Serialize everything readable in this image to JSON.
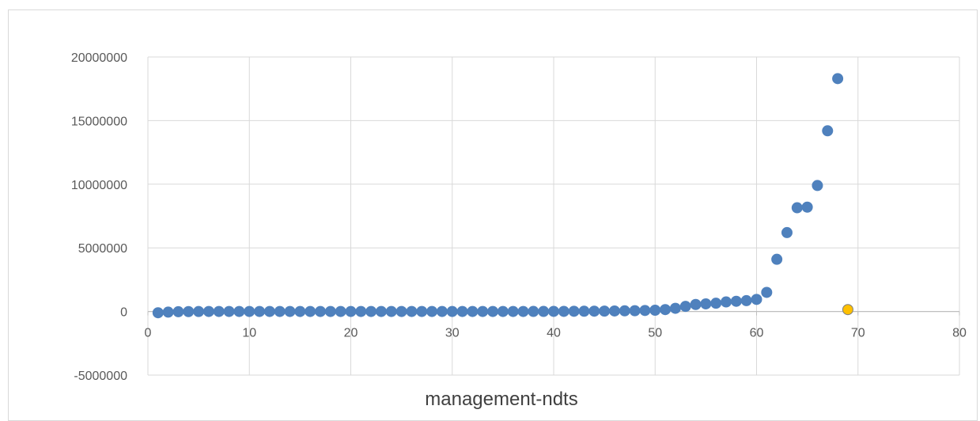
{
  "chart_data": {
    "type": "scatter",
    "title": "",
    "xlabel": "management-ndts",
    "ylabel": "",
    "xlim": [
      0,
      80
    ],
    "ylim": [
      -5000000,
      20000000
    ],
    "x_ticks": [
      "0",
      "10",
      "20",
      "30",
      "40",
      "50",
      "60",
      "70",
      "80"
    ],
    "y_ticks": [
      "20000000",
      "15000000",
      "10000000",
      "5000000",
      "0",
      "-5000000"
    ],
    "grid": true,
    "legend": "none",
    "series": [
      {
        "color": "#4f81bd",
        "x": [
          1,
          2,
          3,
          4,
          5,
          6,
          7,
          8,
          9,
          10,
          11,
          12,
          13,
          14,
          15,
          16,
          17,
          18,
          19,
          20,
          21,
          22,
          23,
          24,
          25,
          26,
          27,
          28,
          29,
          30,
          31,
          32,
          33,
          34,
          35,
          36,
          37,
          38,
          39,
          40,
          41,
          42,
          43,
          44,
          45,
          46,
          47,
          48,
          49,
          50,
          51,
          52,
          53,
          54,
          55,
          56,
          57,
          58,
          59,
          60,
          61,
          62,
          63,
          64,
          65,
          66,
          67,
          68
        ],
        "y": [
          -100000,
          -50000,
          -20000,
          -10000,
          -5000,
          0,
          0,
          0,
          0,
          0,
          0,
          0,
          0,
          0,
          0,
          0,
          0,
          0,
          0,
          0,
          0,
          0,
          0,
          0,
          0,
          0,
          0,
          0,
          0,
          0,
          0,
          0,
          0,
          0,
          0,
          0,
          0,
          5000,
          5000,
          10000,
          10000,
          15000,
          20000,
          25000,
          30000,
          40000,
          50000,
          60000,
          80000,
          100000,
          150000,
          250000,
          400000,
          550000,
          600000,
          650000,
          750000,
          800000,
          850000,
          950000,
          1500000,
          4100000,
          6200000,
          8150000,
          8200000,
          9900000,
          14200000,
          18300000
        ]
      },
      {
        "color": "#ffc000",
        "x": [
          69
        ],
        "y": [
          150000
        ]
      }
    ]
  }
}
